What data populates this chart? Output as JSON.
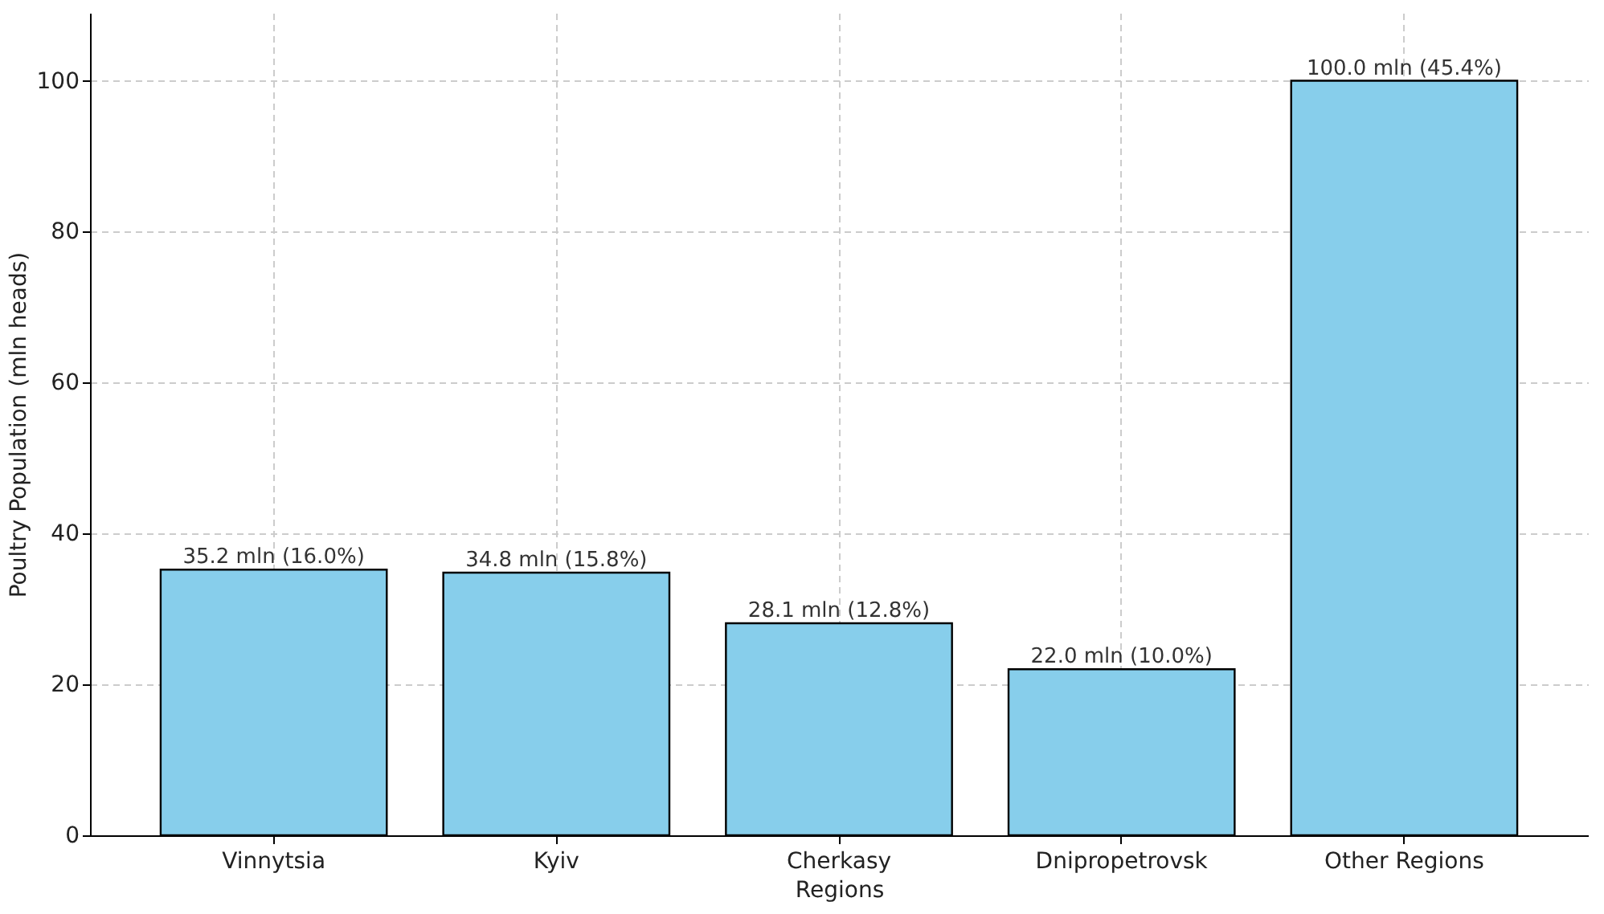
{
  "chart_data": {
    "type": "bar",
    "xlabel": "Regions",
    "ylabel": "Poultry Population (mln heads)",
    "categories": [
      "Vinnytsia",
      "Kyiv",
      "Cherkasy",
      "Dnipropetrovsk",
      "Other Regions"
    ],
    "values": [
      35.2,
      34.8,
      28.1,
      22.0,
      100.0
    ],
    "value_labels": [
      "35.2 mln (16.0%)",
      "34.8 mln (15.8%)",
      "28.1 mln (12.8%)",
      "22.0 mln (10.0%)",
      "100.0 mln (45.4%)"
    ],
    "color": "#87ceeb",
    "ylim": [
      0,
      109
    ],
    "yticks": [
      0,
      20,
      40,
      60,
      80,
      100
    ],
    "grid": true
  }
}
